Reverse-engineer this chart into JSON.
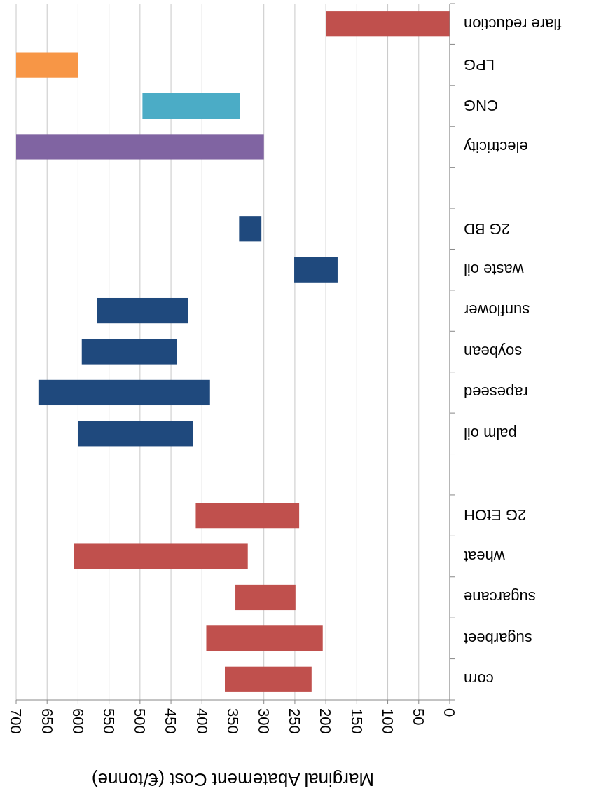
{
  "chart_data": {
    "type": "bar",
    "orientation": "horizontal",
    "xlabel": "Marginal Abatement Cost (€/tonne)",
    "categories": [
      "flare reduction",
      "LPG",
      "CNG",
      "electricity",
      null,
      "2G BD",
      "waste oil",
      "sunflower",
      "soybean",
      "rapeseed",
      "palm oil",
      null,
      "2G EtOH",
      "wheat",
      "sugarcane",
      "sugarbeet",
      "corn"
    ],
    "base": [
      0,
      600,
      339,
      300,
      null,
      304,
      181,
      422,
      441,
      387,
      415,
      null,
      243,
      326,
      249,
      205,
      223
    ],
    "values": [
      200,
      100,
      157,
      400,
      null,
      36,
      70,
      147,
      153,
      277,
      185,
      null,
      167,
      281,
      97,
      188,
      140
    ],
    "colors": [
      "#c0504d",
      "#f79646",
      "#4bacc6",
      "#8064a2",
      null,
      "#1f497d",
      "#1f497d",
      "#1f497d",
      "#1f497d",
      "#1f497d",
      "#1f497d",
      null,
      "#c0504d",
      "#c0504d",
      "#c0504d",
      "#c0504d",
      "#c0504d"
    ],
    "xlim": [
      700,
      0
    ],
    "xticks": [
      0,
      50,
      100,
      150,
      200,
      250,
      300,
      350,
      400,
      450,
      500,
      550,
      600,
      650,
      700
    ],
    "grid": "x"
  }
}
